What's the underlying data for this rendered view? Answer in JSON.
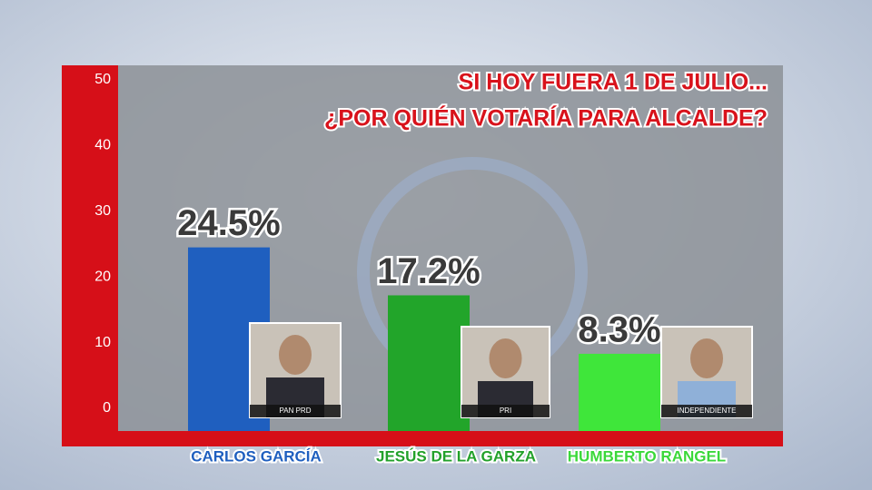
{
  "chart_data": {
    "type": "bar",
    "title": "SI HOY FUERA 1 DE JULIO...",
    "subtitle": "¿POR QUIÉN VOTARÍA PARA ALCALDE?",
    "categories": [
      "CARLOS GARCÍA",
      "JESÚS DE LA GARZA",
      "HUMBERTO RANGEL"
    ],
    "values": [
      24.5,
      17.2,
      8.3
    ],
    "value_labels": [
      "24.5%",
      "17.2%",
      "8.3%"
    ],
    "colors": [
      "#1f5fbf",
      "#22a52a",
      "#3fe63a"
    ],
    "label_colors": [
      "#1f5fbf",
      "#23a12b",
      "#3bd83a"
    ],
    "ylim": [
      0,
      50
    ],
    "yticks": [
      0,
      10,
      20,
      30,
      40,
      50
    ],
    "photo_labels": [
      "PAN PRD",
      "PRI",
      "INDEPENDIENTE"
    ]
  }
}
